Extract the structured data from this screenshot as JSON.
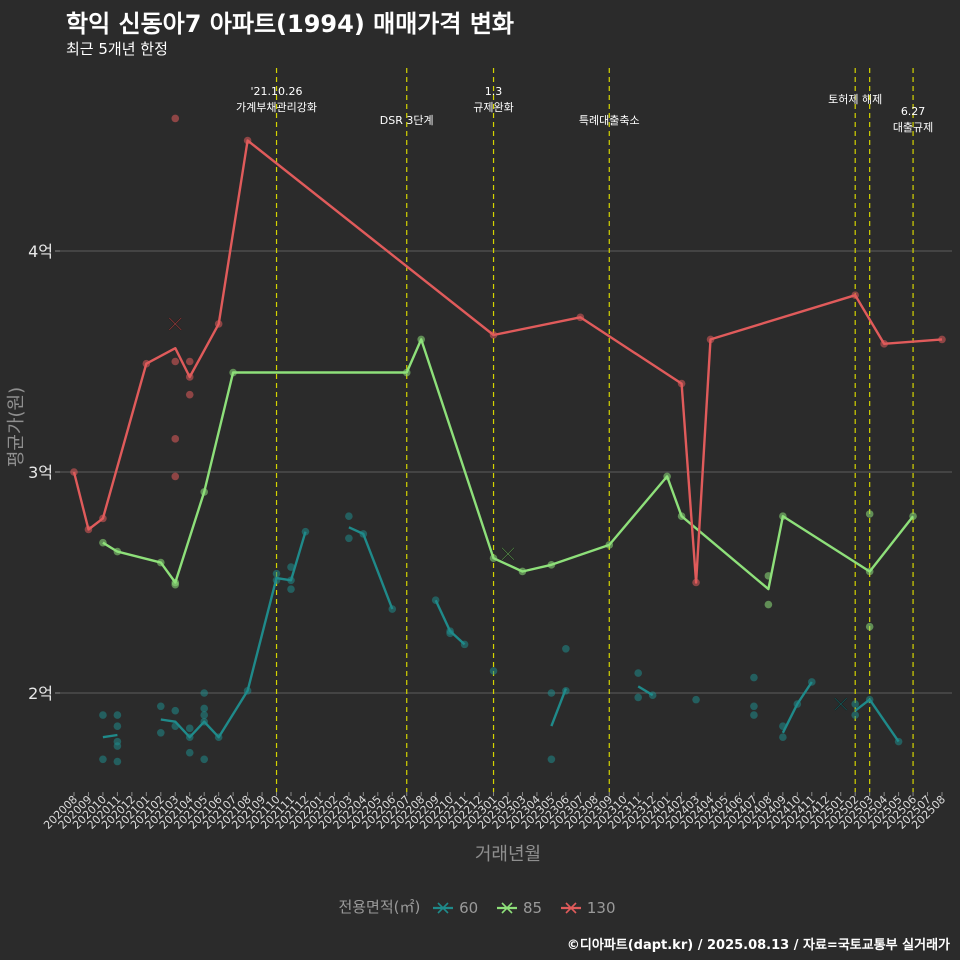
{
  "title": "학익 신동아7 아파트(1994) 매매가격 변화",
  "subtitle": "최근 5개년 한정",
  "caption": "©디아파트(dapt.kr) / 2025.08.13 / 자료=국토교통부 실거래가",
  "legend": {
    "title": "전용면적(㎡)",
    "items": [
      {
        "label": "60",
        "color": "#1f8a8a"
      },
      {
        "label": "85",
        "color": "#8ee07a"
      },
      {
        "label": "130",
        "color": "#e05b5b"
      }
    ]
  },
  "chart_data": {
    "type": "line",
    "xlabel": "거래년월",
    "ylabel": "평균가(원)",
    "categories": [
      "202008",
      "202009",
      "202010",
      "202011",
      "202012",
      "202101",
      "202102",
      "202103",
      "202104",
      "202105",
      "202106",
      "202107",
      "202108",
      "202109",
      "202110",
      "202111",
      "202112",
      "202201",
      "202202",
      "202203",
      "202204",
      "202205",
      "202206",
      "202207",
      "202208",
      "202209",
      "202210",
      "202211",
      "202212",
      "202301",
      "202302",
      "202303",
      "202304",
      "202305",
      "202306",
      "202307",
      "202308",
      "202309",
      "202310",
      "202311",
      "202312",
      "202401",
      "202402",
      "202403",
      "202404",
      "202405",
      "202406",
      "202407",
      "202408",
      "202409",
      "202410",
      "202411",
      "202412",
      "202501",
      "202502",
      "202503",
      "202504",
      "202505",
      "202506",
      "202507",
      "202508"
    ],
    "y_ticks": [
      {
        "value": 2.0,
        "label": "2억"
      },
      {
        "value": 3.0,
        "label": "3억"
      },
      {
        "value": 4.0,
        "label": "4억"
      }
    ],
    "ylim": [
      1.55,
      4.75
    ],
    "grid": true,
    "legend_position": "bottom",
    "series": [
      {
        "name": "60",
        "color": "#1f8a8a",
        "line_segments": [
          [
            [
              "202010",
              1.8
            ],
            [
              "202011",
              1.81
            ]
          ],
          [
            [
              "202102",
              1.88
            ],
            [
              "202103",
              1.87
            ],
            [
              "202104",
              1.8
            ],
            [
              "202105",
              1.87
            ],
            [
              "202106",
              1.8
            ],
            [
              "202108",
              2.01
            ],
            [
              "202110",
              2.52
            ],
            [
              "202111",
              2.51
            ],
            [
              "202112",
              2.73
            ]
          ],
          [
            [
              "202203",
              2.75
            ],
            [
              "202204",
              2.72
            ],
            [
              "202206",
              2.38
            ]
          ],
          [
            [
              "202209",
              2.42
            ],
            [
              "202210",
              2.28
            ],
            [
              "202211",
              2.22
            ]
          ],
          [
            [
              "202305",
              1.85
            ],
            [
              "202306",
              2.02
            ]
          ],
          [
            [
              "202311",
              2.03
            ],
            [
              "202312",
              1.99
            ]
          ],
          [
            [
              "202409",
              1.82
            ],
            [
              "202410",
              1.95
            ],
            [
              "202411",
              2.05
            ]
          ],
          [
            [
              "202502",
              1.92
            ],
            [
              "202503",
              1.97
            ],
            [
              "202505",
              1.78
            ]
          ]
        ],
        "points": [
          [
            "202010",
            1.9
          ],
          [
            "202010",
            1.7
          ],
          [
            "202011",
            1.9
          ],
          [
            "202011",
            1.85
          ],
          [
            "202011",
            1.78
          ],
          [
            "202011",
            1.76
          ],
          [
            "202011",
            1.69
          ],
          [
            "202102",
            1.94
          ],
          [
            "202102",
            1.82
          ],
          [
            "202103",
            1.92
          ],
          [
            "202103",
            1.85
          ],
          [
            "202104",
            1.84
          ],
          [
            "202104",
            1.8
          ],
          [
            "202104",
            1.73
          ],
          [
            "202105",
            2.0
          ],
          [
            "202105",
            1.93
          ],
          [
            "202105",
            1.9
          ],
          [
            "202105",
            1.87
          ],
          [
            "202105",
            1.7
          ],
          [
            "202106",
            1.8
          ],
          [
            "202108",
            2.01
          ],
          [
            "202110",
            2.54
          ],
          [
            "202110",
            2.51
          ],
          [
            "202111",
            2.57
          ],
          [
            "202111",
            2.51
          ],
          [
            "202111",
            2.47
          ],
          [
            "202112",
            2.73
          ],
          [
            "202203",
            2.8
          ],
          [
            "202203",
            2.7
          ],
          [
            "202204",
            2.72
          ],
          [
            "202206",
            2.38
          ],
          [
            "202209",
            2.42
          ],
          [
            "202210",
            2.28
          ],
          [
            "202210",
            2.27
          ],
          [
            "202211",
            2.22
          ],
          [
            "202301",
            2.1
          ],
          [
            "202305",
            2.0
          ],
          [
            "202305",
            1.7
          ],
          [
            "202306",
            2.2
          ],
          [
            "202306",
            2.01
          ],
          [
            "202311",
            2.09
          ],
          [
            "202311",
            1.98
          ],
          [
            "202312",
            1.99
          ],
          [
            "202403",
            1.97
          ],
          [
            "202407",
            2.07
          ],
          [
            "202407",
            1.94
          ],
          [
            "202407",
            1.9
          ],
          [
            "202409",
            1.85
          ],
          [
            "202409",
            1.8
          ],
          [
            "202410",
            1.95
          ],
          [
            "202411",
            2.05
          ],
          [
            "202502",
            1.95
          ],
          [
            "202502",
            1.9
          ],
          [
            "202503",
            1.97
          ],
          [
            "202505",
            1.78
          ]
        ],
        "outliers": [
          [
            "202501",
            1.95
          ]
        ]
      },
      {
        "name": "85",
        "color": "#8ee07a",
        "line_segments": [
          [
            [
              "202010",
              2.68
            ],
            [
              "202011",
              2.64
            ],
            [
              "202102",
              2.59
            ],
            [
              "202103",
              2.5
            ],
            [
              "202105",
              2.91
            ],
            [
              "202107",
              3.45
            ],
            [
              "202207",
              3.45
            ],
            [
              "202208",
              3.6
            ],
            [
              "202301",
              2.61
            ],
            [
              "202303",
              2.55
            ],
            [
              "202305",
              2.58
            ],
            [
              "202309",
              2.67
            ],
            [
              "202401",
              2.98
            ],
            [
              "202402",
              2.8
            ],
            [
              "202408",
              2.47
            ],
            [
              "202409",
              2.8
            ],
            [
              "202503",
              2.55
            ],
            [
              "202506",
              2.8
            ]
          ]
        ],
        "points": [
          [
            "202010",
            2.68
          ],
          [
            "202011",
            2.64
          ],
          [
            "202102",
            2.59
          ],
          [
            "202103",
            2.5
          ],
          [
            "202103",
            2.49
          ],
          [
            "202105",
            2.91
          ],
          [
            "202107",
            3.45
          ],
          [
            "202207",
            3.45
          ],
          [
            "202208",
            3.6
          ],
          [
            "202301",
            2.61
          ],
          [
            "202303",
            2.55
          ],
          [
            "202305",
            2.58
          ],
          [
            "202309",
            2.67
          ],
          [
            "202401",
            2.98
          ],
          [
            "202402",
            2.8
          ],
          [
            "202408",
            2.53
          ],
          [
            "202408",
            2.4
          ],
          [
            "202409",
            2.8
          ],
          [
            "202503",
            2.81
          ],
          [
            "202503",
            2.55
          ],
          [
            "202503",
            2.3
          ],
          [
            "202506",
            2.8
          ]
        ],
        "outliers": [
          [
            "202302",
            2.63
          ]
        ]
      },
      {
        "name": "130",
        "color": "#e05b5b",
        "line_segments": [
          [
            [
              "202008",
              3.0
            ],
            [
              "202009",
              2.74
            ],
            [
              "202010",
              2.79
            ],
            [
              "202101",
              3.49
            ],
            [
              "202103",
              3.56
            ],
            [
              "202104",
              3.43
            ],
            [
              "202106",
              3.67
            ],
            [
              "202108",
              4.5
            ],
            [
              "202301",
              3.62
            ],
            [
              "202307",
              3.7
            ],
            [
              "202402",
              3.4
            ],
            [
              "202403",
              2.5
            ],
            [
              "202404",
              3.6
            ],
            [
              "202502",
              3.8
            ],
            [
              "202504",
              3.58
            ],
            [
              "202508",
              3.6
            ]
          ]
        ],
        "points": [
          [
            "202008",
            3.0
          ],
          [
            "202009",
            2.74
          ],
          [
            "202010",
            2.79
          ],
          [
            "202101",
            3.49
          ],
          [
            "202103",
            4.6
          ],
          [
            "202103",
            3.5
          ],
          [
            "202103",
            3.15
          ],
          [
            "202103",
            2.98
          ],
          [
            "202104",
            3.5
          ],
          [
            "202104",
            3.35
          ],
          [
            "202104",
            3.43
          ],
          [
            "202106",
            3.67
          ],
          [
            "202108",
            4.5
          ],
          [
            "202301",
            3.62
          ],
          [
            "202307",
            3.7
          ],
          [
            "202402",
            3.4
          ],
          [
            "202403",
            2.5
          ],
          [
            "202404",
            3.6
          ],
          [
            "202502",
            3.8
          ],
          [
            "202504",
            3.58
          ],
          [
            "202508",
            3.6
          ]
        ],
        "outliers": [
          [
            "202103",
            3.67
          ]
        ]
      }
    ],
    "annotations": [
      {
        "x": "202110",
        "lines": [
          "'21.10.26",
          "가계부채관리강화"
        ]
      },
      {
        "x": "202207",
        "lines": [
          "DSR 3단계"
        ]
      },
      {
        "x": "202301",
        "lines": [
          "1.3",
          "규제완화"
        ]
      },
      {
        "x": "202309",
        "lines": [
          "특례대출축소"
        ]
      },
      {
        "x": "202502",
        "lines": [
          "토허제 해제"
        ]
      },
      {
        "x": "202503",
        "lines": []
      },
      {
        "x": "202506",
        "lines": [
          "6.27",
          "대출규제"
        ]
      }
    ]
  }
}
